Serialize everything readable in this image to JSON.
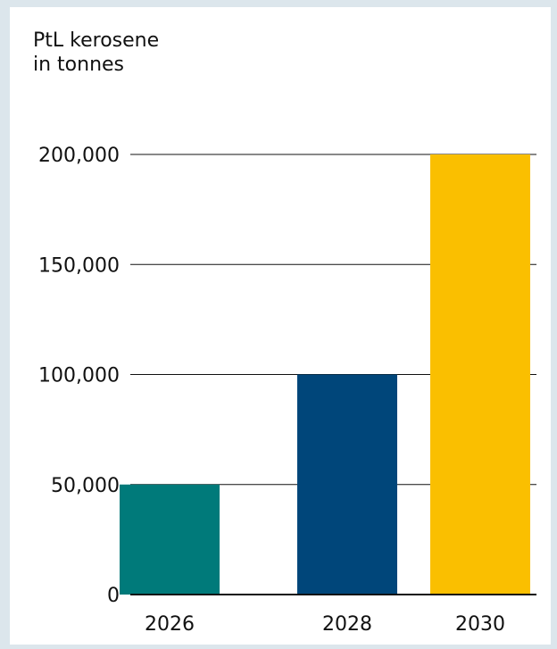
{
  "chart_data": {
    "type": "bar",
    "ylabel_lines": [
      "PtL kerosene",
      "in tonnes"
    ],
    "categories": [
      "2026",
      "2028",
      "2030"
    ],
    "values": [
      50000,
      100000,
      200000
    ],
    "colors": [
      "#007a7a",
      "#00467a",
      "#fabf00"
    ],
    "ylim": [
      0,
      200000
    ],
    "yticks": [
      0,
      50000,
      100000,
      150000,
      200000
    ],
    "ytick_labels": [
      "0",
      "50,000",
      "100,000",
      "150,000",
      "200,000"
    ],
    "grid": true,
    "legend": "none"
  }
}
